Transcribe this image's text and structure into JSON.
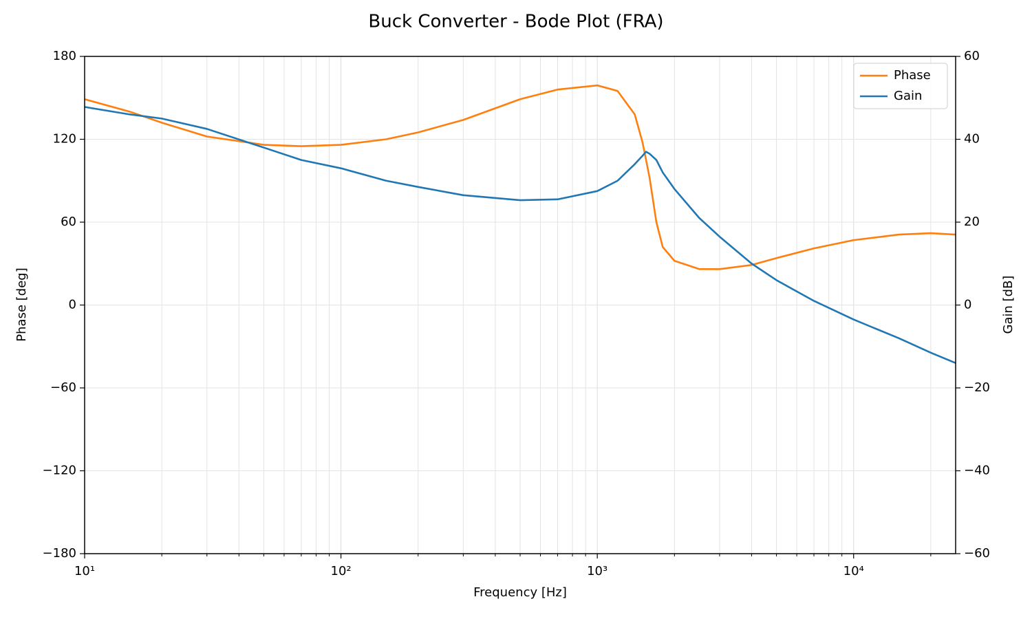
{
  "chart_data": {
    "type": "line",
    "title": "Buck Converter - Bode Plot (FRA)",
    "xlabel": "Frequency [Hz]",
    "ylabel": "Phase [deg]",
    "y2label": "Gain [dB]",
    "xscale": "log",
    "xlim": [
      10,
      25000
    ],
    "xticks": [
      {
        "value": 10,
        "label": "10¹"
      },
      {
        "value": 100,
        "label": "10²"
      },
      {
        "value": 1000,
        "label": "10³"
      },
      {
        "value": 10000,
        "label": "10⁴"
      }
    ],
    "xminorticks": [
      20,
      30,
      40,
      50,
      60,
      70,
      80,
      90,
      200,
      300,
      400,
      500,
      600,
      700,
      800,
      900,
      2000,
      3000,
      4000,
      5000,
      6000,
      7000,
      8000,
      9000,
      20000
    ],
    "ylim": [
      -180,
      180
    ],
    "yticks": [
      {
        "value": -180,
        "label": "−180"
      },
      {
        "value": -120,
        "label": "−120"
      },
      {
        "value": -60,
        "label": "−60"
      },
      0,
      60,
      120,
      180
    ],
    "y2lim": [
      -60,
      60
    ],
    "y2ticks": [
      {
        "value": -60,
        "label": "−60"
      },
      {
        "value": -40,
        "label": "−40"
      },
      {
        "value": -20,
        "label": "−20"
      },
      0,
      20,
      40,
      60
    ],
    "grid": true,
    "legend": "upper right",
    "x": [
      10,
      15,
      20,
      30,
      50,
      70,
      100,
      150,
      200,
      300,
      500,
      700,
      1000,
      1200,
      1400,
      1500,
      1550,
      1600,
      1700,
      1800,
      2000,
      2500,
      3000,
      4000,
      5000,
      7000,
      10000,
      15000,
      20000,
      25000
    ],
    "series": [
      {
        "name": "Phase",
        "color": "#ff7f0e",
        "axis": "y",
        "values": [
          149,
          140,
          132,
          122,
          116,
          115,
          116,
          120,
          125,
          134,
          149,
          156,
          159,
          155,
          138,
          118,
          105,
          92,
          60,
          42,
          32,
          26,
          26,
          29,
          34,
          41,
          47,
          51,
          52,
          51
        ]
      },
      {
        "name": "Gain",
        "color": "#1f77b4",
        "axis": "y2",
        "values": [
          47.8,
          46,
          45,
          42.5,
          38,
          35,
          33,
          30,
          28.5,
          26.5,
          25.3,
          25.5,
          27.5,
          30,
          34,
          36,
          37,
          36.5,
          35,
          32,
          28,
          21,
          16.5,
          10,
          6,
          1,
          -3.5,
          -8,
          -11.5,
          -14
        ]
      }
    ]
  }
}
